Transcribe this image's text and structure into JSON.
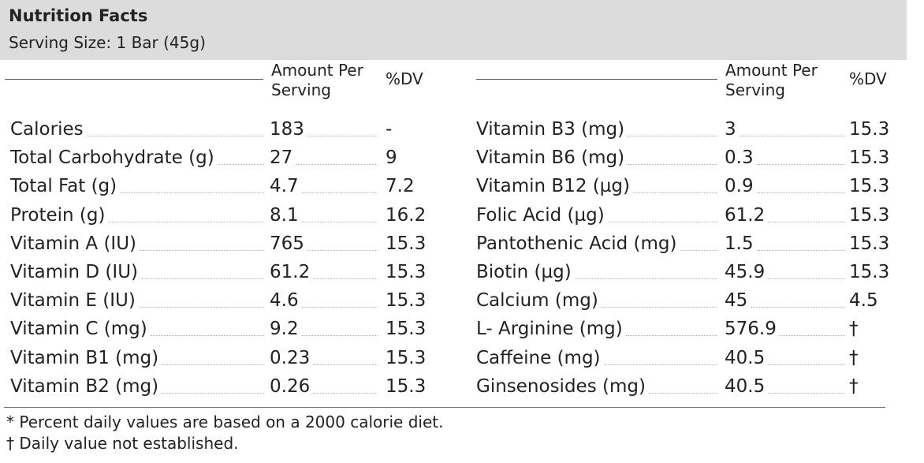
{
  "header": {
    "title": "Nutrition Facts",
    "serving": "Serving Size: 1 Bar (45g)"
  },
  "columns": {
    "amount_line1": "Amount Per",
    "amount_line2": "Serving",
    "dv": "%DV"
  },
  "left_rows": [
    {
      "name": "Calories",
      "amount": "183",
      "dv": "-"
    },
    {
      "name": "Total Carbohydrate (g)",
      "amount": "27",
      "dv": "9"
    },
    {
      "name": "Total Fat (g)",
      "amount": "4.7",
      "dv": "7.2"
    },
    {
      "name": "Protein (g)",
      "amount": "8.1",
      "dv": "16.2"
    },
    {
      "name": "Vitamin A (IU)",
      "amount": "765",
      "dv": "15.3"
    },
    {
      "name": "Vitamin D (IU)",
      "amount": "61.2",
      "dv": "15.3"
    },
    {
      "name": "Vitamin E (IU)",
      "amount": "4.6",
      "dv": "15.3"
    },
    {
      "name": "Vitamin C (mg)",
      "amount": "9.2",
      "dv": "15.3"
    },
    {
      "name": "Vitamin B1 (mg)",
      "amount": "0.23",
      "dv": "15.3"
    },
    {
      "name": "Vitamin B2 (mg)",
      "amount": "0.26",
      "dv": "15.3"
    }
  ],
  "right_rows": [
    {
      "name": "Vitamin B3 (mg)",
      "amount": "3",
      "dv": "15.3"
    },
    {
      "name": "Vitamin B6 (mg)",
      "amount": "0.3",
      "dv": "15.3"
    },
    {
      "name": "Vitamin B12 (µg)",
      "amount": "0.9",
      "dv": "15.3"
    },
    {
      "name": "Folic Acid (µg)",
      "amount": "61.2",
      "dv": "15.3"
    },
    {
      "name": "Pantothenic Acid (mg)",
      "amount": "1.5",
      "dv": "15.3"
    },
    {
      "name": "Biotin (µg)",
      "amount": "45.9",
      "dv": "15.3"
    },
    {
      "name": "Calcium (mg)",
      "amount": "45",
      "dv": "4.5"
    },
    {
      "name": "L- Arginine (mg)",
      "amount": "576.9",
      "dv": "†"
    },
    {
      "name": "Caffeine (mg)",
      "amount": "40.5",
      "dv": "†"
    },
    {
      "name": "Ginsenosides (mg)",
      "amount": "40.5",
      "dv": "†"
    }
  ],
  "footer": {
    "note1": "* Percent daily values are based on a 2000 calorie diet.",
    "note2": "† Daily value not established."
  }
}
